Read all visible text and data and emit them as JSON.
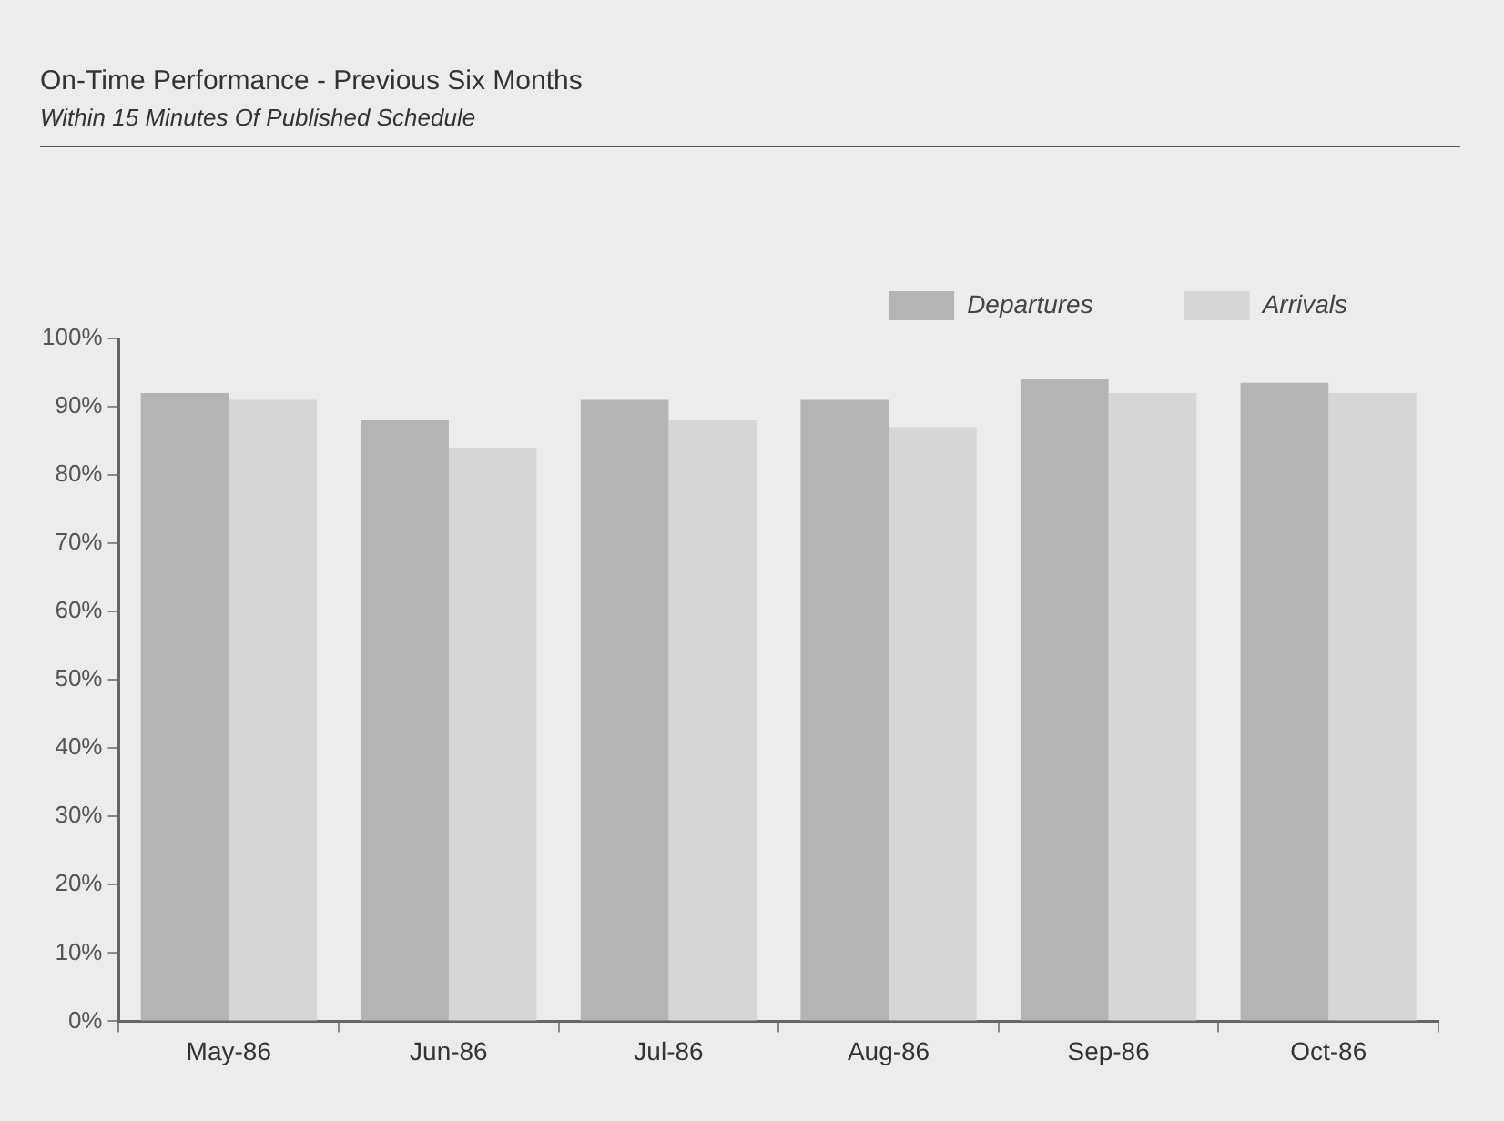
{
  "chart_data": {
    "type": "bar",
    "title": "On-Time Performance - Previous Six Months",
    "subtitle": "Within 15 Minutes Of Published Schedule",
    "categories": [
      "May-86",
      "Jun-86",
      "Jul-86",
      "Aug-86",
      "Sep-86",
      "Oct-86"
    ],
    "series": [
      {
        "name": "Departures",
        "color": "#b4b4b4",
        "values": [
          92,
          88,
          91,
          91,
          94,
          93.5
        ]
      },
      {
        "name": "Arrivals",
        "color": "#d6d6d6",
        "values": [
          91,
          84,
          88,
          87,
          92,
          92
        ]
      }
    ],
    "ylim": [
      0,
      100
    ],
    "yticks": [
      {
        "value": 0,
        "label": "0%"
      },
      {
        "value": 10,
        "label": "10%"
      },
      {
        "value": 20,
        "label": "20%"
      },
      {
        "value": 30,
        "label": "30%"
      },
      {
        "value": 40,
        "label": "40%"
      },
      {
        "value": 50,
        "label": "50%"
      },
      {
        "value": 60,
        "label": "60%"
      },
      {
        "value": 70,
        "label": "70%"
      },
      {
        "value": 80,
        "label": "80%"
      },
      {
        "value": 90,
        "label": "90%"
      },
      {
        "value": 100,
        "label": "100%"
      }
    ],
    "grid": false,
    "legend": "top right"
  }
}
